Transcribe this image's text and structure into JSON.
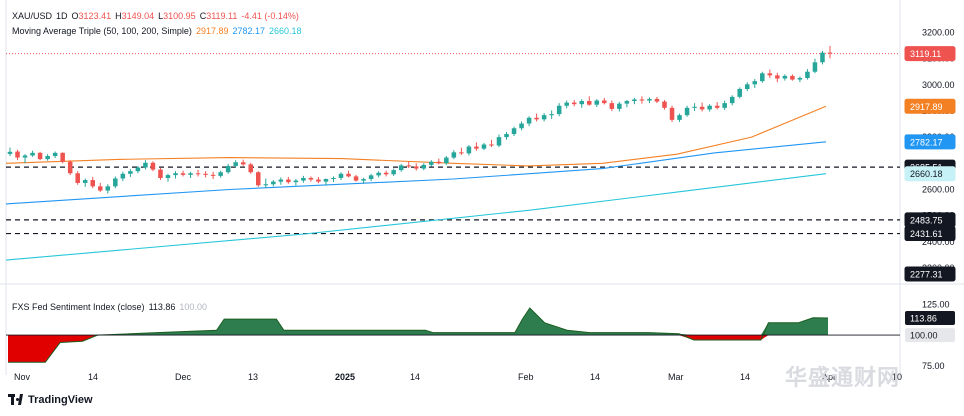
{
  "legend": {
    "symbol": "XAU/USD",
    "interval": "1D",
    "open_label": "O",
    "open": "3123.41",
    "high_label": "H",
    "high": "3149.04",
    "low_label": "L",
    "low": "3100.95",
    "close_label": "C",
    "close": "3119.11",
    "change": "-4.41 (-0.14%)",
    "ma_title": "Moving Average Triple (50, 100, 200, Simple)",
    "ma50": "2917.89",
    "ma100": "2782.17",
    "ma200": "2660.18",
    "ind_title": "FXS Fed Sentiment Index (close)",
    "ind_value": "113.86",
    "ind_ref": "100.00"
  },
  "brand": "TradingView",
  "watermark": "华盛通财网",
  "colors": {
    "up": "#26a69a",
    "down": "#ef5350",
    "ma50": "#f48024",
    "ma100": "#2196f3",
    "ma200": "#26c6da",
    "ind_pos": "#2e7d4f",
    "ind_neg": "#e00000",
    "price_line": "#ef5350"
  },
  "chart_data": {
    "type": "candlestick",
    "x_tick_labels": [
      "Nov",
      "14",
      "Dec",
      "13",
      "2025",
      "14",
      "Feb",
      "14",
      "Mar",
      "14",
      "Apr",
      "10"
    ],
    "y_tick_labels": [
      "3200.00",
      "3100.00",
      "3000.00",
      "2900.00",
      "2800.00",
      "2700.00",
      "2600.00",
      "2500.00",
      "2400.00",
      "2300.00"
    ],
    "price_labels": [
      {
        "value": "3119.11",
        "kind": "last"
      },
      {
        "value": "2917.89",
        "kind": "ma50"
      },
      {
        "value": "2782.17",
        "kind": "ma100"
      },
      {
        "value": "2685.51",
        "kind": "level"
      },
      {
        "value": "2660.18",
        "kind": "ma200"
      },
      {
        "value": "2483.75",
        "kind": "level"
      },
      {
        "value": "2431.61",
        "kind": "level"
      },
      {
        "value": "2277.31",
        "kind": "level"
      }
    ],
    "horizontal_levels": [
      2685.51,
      2483.75,
      2431.61
    ],
    "last_price": 3119.11,
    "ylim": [
      2300,
      3240
    ],
    "candles": [
      [
        2736,
        2760,
        2728,
        2744
      ],
      [
        2745,
        2752,
        2712,
        2722
      ],
      [
        2722,
        2735,
        2700,
        2730
      ],
      [
        2730,
        2748,
        2725,
        2740
      ],
      [
        2740,
        2744,
        2712,
        2716
      ],
      [
        2716,
        2735,
        2710,
        2728
      ],
      [
        2728,
        2745,
        2720,
        2740
      ],
      [
        2740,
        2742,
        2700,
        2706
      ],
      [
        2706,
        2712,
        2655,
        2662
      ],
      [
        2662,
        2670,
        2618,
        2625
      ],
      [
        2625,
        2642,
        2610,
        2636
      ],
      [
        2636,
        2648,
        2605,
        2612
      ],
      [
        2612,
        2625,
        2590,
        2596
      ],
      [
        2596,
        2620,
        2585,
        2612
      ],
      [
        2612,
        2650,
        2605,
        2642
      ],
      [
        2642,
        2668,
        2632,
        2660
      ],
      [
        2660,
        2678,
        2648,
        2670
      ],
      [
        2670,
        2690,
        2662,
        2684
      ],
      [
        2684,
        2712,
        2676,
        2702
      ],
      [
        2702,
        2708,
        2670,
        2676
      ],
      [
        2676,
        2682,
        2636,
        2644
      ],
      [
        2644,
        2660,
        2630,
        2655
      ],
      [
        2655,
        2670,
        2642,
        2662
      ],
      [
        2662,
        2672,
        2650,
        2656
      ],
      [
        2656,
        2668,
        2644,
        2662
      ],
      [
        2662,
        2675,
        2650,
        2660
      ],
      [
        2660,
        2670,
        2646,
        2656
      ],
      [
        2656,
        2668,
        2640,
        2652
      ],
      [
        2652,
        2672,
        2645,
        2666
      ],
      [
        2666,
        2698,
        2660,
        2690
      ],
      [
        2690,
        2712,
        2684,
        2704
      ],
      [
        2704,
        2714,
        2690,
        2696
      ],
      [
        2696,
        2702,
        2660,
        2666
      ],
      [
        2666,
        2670,
        2610,
        2616
      ],
      [
        2616,
        2642,
        2606,
        2620
      ],
      [
        2620,
        2636,
        2612,
        2630
      ],
      [
        2630,
        2646,
        2618,
        2638
      ],
      [
        2638,
        2648,
        2622,
        2628
      ],
      [
        2628,
        2640,
        2615,
        2634
      ],
      [
        2634,
        2652,
        2626,
        2644
      ],
      [
        2644,
        2650,
        2630,
        2638
      ],
      [
        2638,
        2648,
        2624,
        2630
      ],
      [
        2630,
        2642,
        2615,
        2640
      ],
      [
        2640,
        2650,
        2628,
        2644
      ],
      [
        2644,
        2666,
        2636,
        2660
      ],
      [
        2660,
        2672,
        2646,
        2650
      ],
      [
        2650,
        2656,
        2630,
        2634
      ],
      [
        2634,
        2645,
        2622,
        2640
      ],
      [
        2640,
        2660,
        2632,
        2654
      ],
      [
        2654,
        2670,
        2646,
        2664
      ],
      [
        2664,
        2672,
        2650,
        2658
      ],
      [
        2658,
        2680,
        2652,
        2674
      ],
      [
        2674,
        2698,
        2668,
        2692
      ],
      [
        2692,
        2706,
        2682,
        2688
      ],
      [
        2688,
        2700,
        2672,
        2680
      ],
      [
        2680,
        2700,
        2674,
        2694
      ],
      [
        2694,
        2712,
        2688,
        2706
      ],
      [
        2706,
        2718,
        2696,
        2700
      ],
      [
        2700,
        2728,
        2694,
        2722
      ],
      [
        2722,
        2750,
        2716,
        2742
      ],
      [
        2742,
        2760,
        2732,
        2738
      ],
      [
        2738,
        2770,
        2730,
        2764
      ],
      [
        2764,
        2780,
        2748,
        2756
      ],
      [
        2756,
        2778,
        2750,
        2772
      ],
      [
        2772,
        2790,
        2762,
        2768
      ],
      [
        2768,
        2810,
        2762,
        2800
      ],
      [
        2800,
        2820,
        2790,
        2812
      ],
      [
        2812,
        2840,
        2804,
        2834
      ],
      [
        2834,
        2860,
        2826,
        2852
      ],
      [
        2852,
        2880,
        2842,
        2874
      ],
      [
        2874,
        2890,
        2860,
        2868
      ],
      [
        2868,
        2892,
        2860,
        2884
      ],
      [
        2884,
        2902,
        2870,
        2888
      ],
      [
        2888,
        2930,
        2880,
        2920
      ],
      [
        2920,
        2940,
        2910,
        2932
      ],
      [
        2932,
        2942,
        2918,
        2926
      ],
      [
        2926,
        2945,
        2912,
        2938
      ],
      [
        2938,
        2956,
        2920,
        2924
      ],
      [
        2924,
        2945,
        2915,
        2940
      ],
      [
        2940,
        2950,
        2925,
        2930
      ],
      [
        2930,
        2940,
        2900,
        2908
      ],
      [
        2908,
        2935,
        2898,
        2928
      ],
      [
        2928,
        2942,
        2914,
        2938
      ],
      [
        2938,
        2950,
        2926,
        2944
      ],
      [
        2944,
        2956,
        2928,
        2940
      ],
      [
        2940,
        2952,
        2930,
        2946
      ],
      [
        2946,
        2954,
        2930,
        2936
      ],
      [
        2936,
        2942,
        2905,
        2912
      ],
      [
        2912,
        2920,
        2858,
        2866
      ],
      [
        2866,
        2890,
        2858,
        2884
      ],
      [
        2884,
        2920,
        2878,
        2912
      ],
      [
        2912,
        2930,
        2900,
        2916
      ],
      [
        2916,
        2932,
        2898,
        2906
      ],
      [
        2906,
        2926,
        2898,
        2920
      ],
      [
        2920,
        2934,
        2906,
        2912
      ],
      [
        2912,
        2940,
        2904,
        2930
      ],
      [
        2930,
        2960,
        2922,
        2954
      ],
      [
        2954,
        2990,
        2948,
        2984
      ],
      [
        2984,
        3010,
        2976,
        3002
      ],
      [
        3002,
        3022,
        2988,
        3014
      ],
      [
        3014,
        3050,
        3008,
        3044
      ],
      [
        3044,
        3058,
        3026,
        3036
      ],
      [
        3036,
        3046,
        3010,
        3024
      ],
      [
        3024,
        3040,
        3016,
        3034
      ],
      [
        3034,
        3040,
        3016,
        3020
      ],
      [
        3020,
        3032,
        3010,
        3026
      ],
      [
        3026,
        3060,
        3020,
        3050
      ],
      [
        3050,
        3100,
        3044,
        3086
      ],
      [
        3086,
        3130,
        3078,
        3123
      ],
      [
        3123,
        3149,
        3101,
        3119
      ]
    ],
    "series": [
      {
        "name": "2917.89",
        "kind": "ma50",
        "start": 2700,
        "end": 2917.89,
        "path": [
          [
            0,
            2700
          ],
          [
            15,
            2715
          ],
          [
            30,
            2722
          ],
          [
            45,
            2718
          ],
          [
            60,
            2700
          ],
          [
            70,
            2690
          ],
          [
            80,
            2700
          ],
          [
            90,
            2735
          ],
          [
            100,
            2800
          ],
          [
            110,
            2917.89
          ]
        ]
      },
      {
        "name": "2782.17",
        "kind": "ma100",
        "start": 2545,
        "end": 2782.17,
        "path": [
          [
            0,
            2545
          ],
          [
            30,
            2600
          ],
          [
            60,
            2640
          ],
          [
            80,
            2680
          ],
          [
            95,
            2740
          ],
          [
            110,
            2782.17
          ]
        ]
      },
      {
        "name": "2660.18",
        "kind": "ma200",
        "start": 2330,
        "end": 2660.18,
        "path": [
          [
            0,
            2330
          ],
          [
            40,
            2430
          ],
          [
            70,
            2520
          ],
          [
            90,
            2590
          ],
          [
            110,
            2660.18
          ]
        ]
      }
    ],
    "indicator": {
      "name": "FXS Fed Sentiment Index (close)",
      "ylim": [
        70,
        135
      ],
      "y_tick_labels": [
        "125.00",
        "100.00",
        "75.00"
      ],
      "reference": 100,
      "last": 113.86,
      "points": [
        [
          0,
          78
        ],
        [
          5,
          78
        ],
        [
          7,
          94
        ],
        [
          10,
          95
        ],
        [
          12,
          100
        ],
        [
          20,
          102
        ],
        [
          28,
          104
        ],
        [
          29,
          113
        ],
        [
          36,
          113
        ],
        [
          37,
          104
        ],
        [
          56,
          104
        ],
        [
          57,
          102
        ],
        [
          68,
          102
        ],
        [
          69,
          113
        ],
        [
          70,
          122
        ],
        [
          72,
          110
        ],
        [
          75,
          104
        ],
        [
          78,
          102
        ],
        [
          86,
          102
        ],
        [
          90,
          101
        ],
        [
          92,
          96
        ],
        [
          101,
          96
        ],
        [
          102,
          110
        ],
        [
          106,
          110
        ],
        [
          108,
          114
        ],
        [
          110,
          113.86
        ]
      ]
    }
  }
}
